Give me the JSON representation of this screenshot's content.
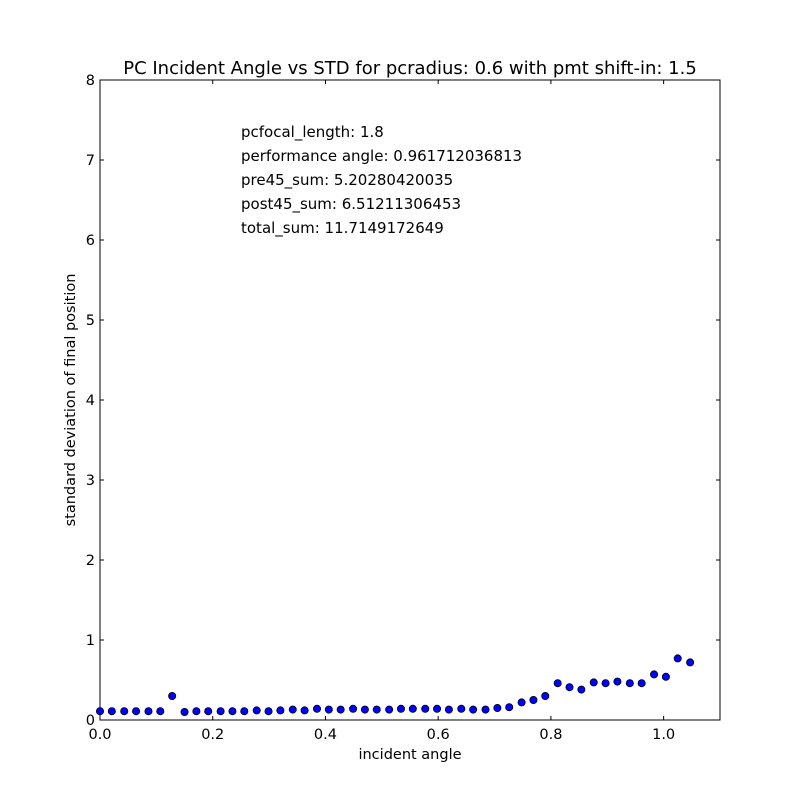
{
  "chart_data": {
    "type": "scatter",
    "title": "PC Incident Angle vs STD for pcradius: 0.6 with pmt shift-in: 1.5",
    "xlabel": "incident angle",
    "ylabel": "standard deviation of final position",
    "xlim": [
      0.0,
      1.1
    ],
    "ylim": [
      0,
      8
    ],
    "xticks": [
      "0.0",
      "0.2",
      "0.4",
      "0.6",
      "0.8",
      "1.0"
    ],
    "xtick_values": [
      0.0,
      0.2,
      0.4,
      0.6,
      0.8,
      1.0
    ],
    "yticks": [
      "0",
      "1",
      "2",
      "3",
      "4",
      "5",
      "6",
      "7",
      "8"
    ],
    "ytick_values": [
      0,
      1,
      2,
      3,
      4,
      5,
      6,
      7,
      8
    ],
    "grid": false,
    "marker_color": "#0000ff",
    "annotations": [
      "pcfocal_length: 1.8",
      "performance angle: 0.961712036813",
      "pre45_sum: 5.20280420035",
      "post45_sum: 6.51211306453",
      "total_sum: 11.7149172649"
    ],
    "x": [
      0.0,
      0.021,
      0.043,
      0.064,
      0.086,
      0.107,
      0.128,
      0.15,
      0.171,
      0.192,
      0.214,
      0.235,
      0.256,
      0.278,
      0.299,
      0.32,
      0.342,
      0.363,
      0.385,
      0.406,
      0.427,
      0.449,
      0.47,
      0.491,
      0.513,
      0.534,
      0.555,
      0.577,
      0.598,
      0.619,
      0.641,
      0.662,
      0.684,
      0.705,
      0.726,
      0.748,
      0.769,
      0.79,
      0.812,
      0.833,
      0.854,
      0.876,
      0.897,
      0.918,
      0.94,
      0.961,
      0.983,
      1.004,
      1.025,
      1.047
    ],
    "y": [
      0.11,
      0.11,
      0.11,
      0.11,
      0.11,
      0.11,
      0.3,
      0.1,
      0.11,
      0.11,
      0.11,
      0.11,
      0.11,
      0.12,
      0.11,
      0.12,
      0.13,
      0.12,
      0.14,
      0.13,
      0.13,
      0.14,
      0.13,
      0.13,
      0.13,
      0.14,
      0.14,
      0.14,
      0.14,
      0.13,
      0.14,
      0.13,
      0.13,
      0.15,
      0.16,
      0.22,
      0.25,
      0.3,
      0.46,
      0.41,
      0.38,
      0.47,
      0.46,
      0.48,
      0.46,
      0.46,
      0.57,
      0.54,
      0.77,
      0.72
    ]
  }
}
